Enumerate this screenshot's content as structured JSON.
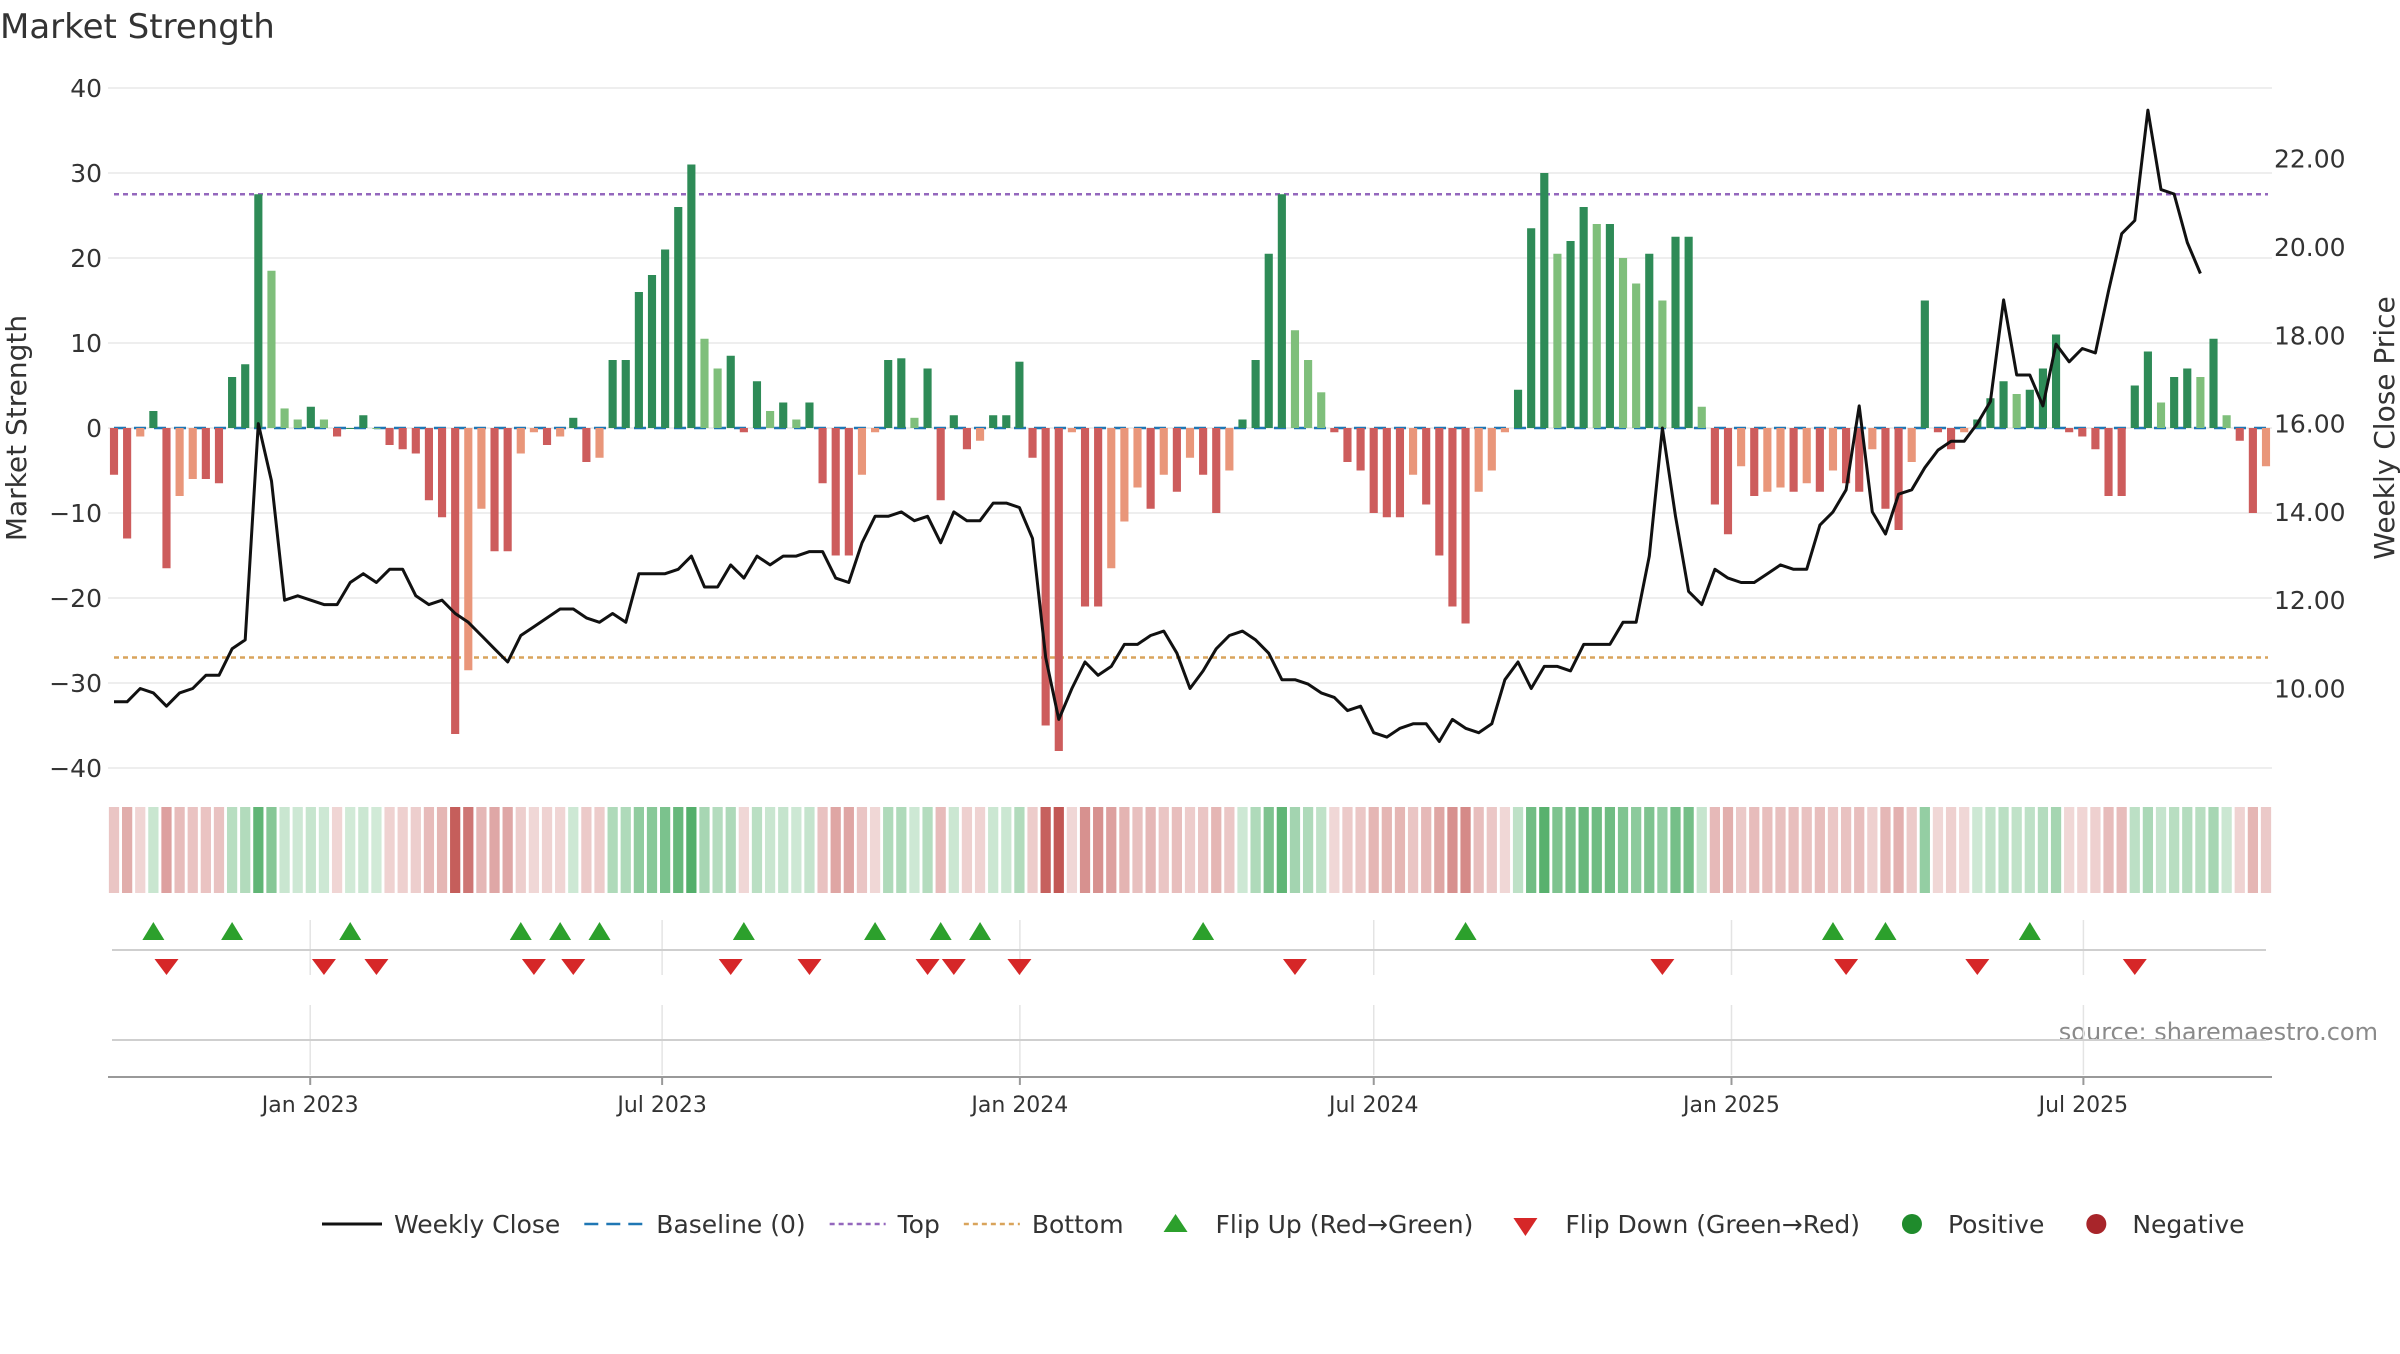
{
  "chart_data": {
    "type": "bar",
    "title": "Market Strength",
    "ylabel_left": "Market Strength",
    "ylabel_right": "Weekly Close Price",
    "source": "source: sharemaestro.com",
    "y_left": {
      "min": -40,
      "max": 40,
      "ticks": [
        "40",
        "30",
        "20",
        "10",
        "0",
        "−10",
        "−20",
        "−30",
        "−40"
      ]
    },
    "y_right": {
      "min": 8.2,
      "max": 23.6,
      "ticks": [
        {
          "value": 22.0,
          "label": "22.00"
        },
        {
          "value": 20.0,
          "label": "20.00"
        },
        {
          "value": 18.0,
          "label": "18.00"
        },
        {
          "value": 16.0,
          "label": "16.00"
        },
        {
          "value": 14.0,
          "label": "14.00"
        },
        {
          "value": 12.0,
          "label": "12.00"
        },
        {
          "value": 10.0,
          "label": "10.00"
        }
      ]
    },
    "x_start": "2022-09-19",
    "x_end": "2025-10-06",
    "x_ticks": [
      {
        "date": "2023-01-01",
        "label": "Jan 2023"
      },
      {
        "date": "2023-07-01",
        "label": "Jul 2023"
      },
      {
        "date": "2024-01-01",
        "label": "Jan 2024"
      },
      {
        "date": "2024-07-01",
        "label": "Jul 2024"
      },
      {
        "date": "2025-01-01",
        "label": "Jan 2025"
      },
      {
        "date": "2025-07-01",
        "label": "Jul 2025"
      }
    ],
    "top_line": 27.5,
    "bottom_line": -27,
    "baseline": 0,
    "strength_values": [
      -5.5,
      -13,
      -1,
      2,
      -16.5,
      -8,
      -6,
      -6,
      -6.5,
      6,
      7.5,
      27.5,
      18.5,
      2.3,
      1,
      2.5,
      1,
      -1,
      0,
      1.5,
      0,
      -2,
      -2.5,
      -3,
      -8.5,
      -10.5,
      -36,
      -28.5,
      -9.5,
      -14.5,
      -14.5,
      -3,
      -0.5,
      -2,
      -1,
      1.2,
      -4,
      -3.5,
      8,
      8,
      16,
      18,
      21,
      26,
      31,
      10.5,
      7,
      8.5,
      -0.5,
      5.5,
      2,
      3,
      1,
      3,
      -6.5,
      -15,
      -15,
      -5.5,
      -0.5,
      8,
      8.2,
      1.2,
      7,
      -8.5,
      1.5,
      -2.5,
      -1.5,
      1.5,
      1.5,
      7.8,
      -3.5,
      -35,
      -38,
      -0.5,
      -21,
      -21,
      -16.5,
      -11,
      -7,
      -9.5,
      -5.5,
      -7.5,
      -3.5,
      -5.5,
      -10,
      -5,
      1,
      8,
      20.5,
      27.5,
      11.5,
      8,
      4.2,
      -0.5,
      -4,
      -5,
      -10,
      -10.5,
      -10.5,
      -5.5,
      -9,
      -15,
      -21,
      -23,
      -7.5,
      -5,
      -0.5,
      4.5,
      23.5,
      30,
      20.5,
      22,
      26,
      24,
      24,
      20,
      17,
      20.5,
      15,
      22.5,
      22.5,
      2.5,
      -9,
      -12.5,
      -4.5,
      -8,
      -7.5,
      -7,
      -7.5,
      -6.5,
      -7.5,
      -5,
      -6.5,
      -7.5,
      -2.5,
      -9.5,
      -12,
      -4,
      15,
      -0.5,
      -2.5,
      -0.5,
      1,
      3.5,
      5.5,
      4,
      4.5,
      7,
      11,
      -0.5,
      -1,
      -2.5,
      -8,
      -8,
      5,
      9,
      3,
      6,
      7,
      6,
      10.5,
      1.5,
      -1.5,
      -10,
      -4.5
    ],
    "weekly_close": [
      9.7,
      9.7,
      10.0,
      9.9,
      9.6,
      9.9,
      10.0,
      10.3,
      10.3,
      10.9,
      11.1,
      16.0,
      14.7,
      12.0,
      12.1,
      12.0,
      11.9,
      11.9,
      12.4,
      12.6,
      12.4,
      12.7,
      12.7,
      12.1,
      11.9,
      12.0,
      11.7,
      11.5,
      11.2,
      10.9,
      10.6,
      11.2,
      11.4,
      11.6,
      11.8,
      11.8,
      11.6,
      11.5,
      11.7,
      11.5,
      12.6,
      12.6,
      12.6,
      12.7,
      13.0,
      12.3,
      12.3,
      12.8,
      12.5,
      13.0,
      12.8,
      13.0,
      13.0,
      13.1,
      13.1,
      12.5,
      12.4,
      13.3,
      13.9,
      13.9,
      14.0,
      13.8,
      13.9,
      13.3,
      14.0,
      13.8,
      13.8,
      14.2,
      14.2,
      14.1,
      13.4,
      10.7,
      9.3,
      10.0,
      10.6,
      10.3,
      10.5,
      11.0,
      11.0,
      11.2,
      11.3,
      10.8,
      10.0,
      10.4,
      10.9,
      11.2,
      11.3,
      11.1,
      10.8,
      10.2,
      10.2,
      10.1,
      9.9,
      9.8,
      9.5,
      9.6,
      9.0,
      8.9,
      9.1,
      9.2,
      9.2,
      8.8,
      9.3,
      9.1,
      9.0,
      9.2,
      10.2,
      10.6,
      10.0,
      10.5,
      10.5,
      10.4,
      11.0,
      11.0,
      11.0,
      11.5,
      11.5,
      13.0,
      15.9,
      13.9,
      12.2,
      11.9,
      12.7,
      12.5,
      12.4,
      12.4,
      12.6,
      12.8,
      12.7,
      12.7,
      13.7,
      14.0,
      14.5,
      16.4,
      14.0,
      13.5,
      14.4,
      14.5,
      15.0,
      15.4,
      15.6,
      15.6,
      16.0,
      16.5,
      18.8,
      17.1,
      17.1,
      16.4,
      17.8,
      17.4,
      17.7,
      17.6,
      19.0,
      20.3,
      20.6,
      23.1,
      21.3,
      21.2,
      20.1,
      19.4
    ]
  },
  "bands": {
    "flip_up_label": "Flip Up (Red→Green)",
    "flip_down_label": "Flip Down (Green→Red)"
  },
  "flip_up_weeks": [
    3,
    9,
    18,
    31,
    34,
    37,
    48,
    58,
    63,
    66,
    83,
    103,
    131,
    135,
    146
  ],
  "flip_down_weeks": [
    4,
    16,
    20,
    32,
    35,
    47,
    53,
    62,
    64,
    69,
    90,
    118,
    132,
    142,
    154
  ],
  "legend": [
    {
      "label": "Weekly Close",
      "marker": "solid-line",
      "color": "#111111"
    },
    {
      "label": "Baseline (0)",
      "marker": "dashed-line",
      "color": "#1f77b4"
    },
    {
      "label": "Top",
      "marker": "dotted-line",
      "color": "#9467bd"
    },
    {
      "label": "Bottom",
      "marker": "dotted-line",
      "color": "#d9a45b"
    },
    {
      "label": "Flip Up (Red→Green)",
      "marker": "triangle-up",
      "color": "#2ca02c"
    },
    {
      "label": "Flip Down (Green→Red)",
      "marker": "triangle-down",
      "color": "#d62728"
    },
    {
      "label": "Positive",
      "marker": "circle",
      "color": "#1f8b2c"
    },
    {
      "label": "Negative",
      "marker": "circle",
      "color": "#a8252a"
    }
  ],
  "colors": {
    "strong_green": "#2e8b57",
    "light_green": "#7fbf7b",
    "strong_red": "#cd5c5c",
    "light_red": "#e9967a",
    "price_line": "#111111",
    "top_line": "#9467bd",
    "bottom_line": "#d9a45b",
    "baseline": "#1f77b4",
    "grid": "#e8e8e8"
  }
}
